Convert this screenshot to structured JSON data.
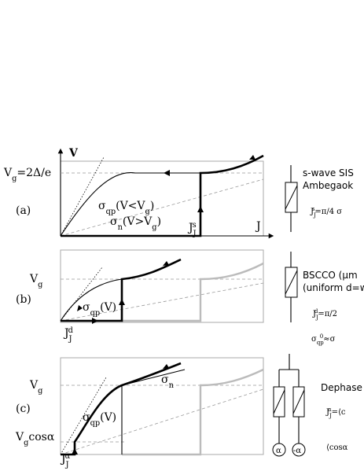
{
  "labels": {
    "a_v": [
      {
        "t": "V"
      }
    ],
    "a_vg": [
      {
        "t": "V"
      },
      {
        "sub": "g"
      },
      {
        "t": "=2Δ/e"
      }
    ],
    "a_label": [
      {
        "t": "(a)"
      }
    ],
    "a_sqp": [
      {
        "t": "σ"
      },
      {
        "sub": "qp"
      },
      {
        "t": "(V<V"
      },
      {
        "sub": "g"
      },
      {
        "t": ")"
      }
    ],
    "a_sn": [
      {
        "t": "σ"
      },
      {
        "sub": "n"
      },
      {
        "t": "(V>V"
      },
      {
        "sub": "g"
      },
      {
        "t": ")"
      }
    ],
    "a_jj": [
      {
        "t": "J"
      },
      {
        "sub": "J"
      },
      {
        "sup": "s"
      }
    ],
    "a_j": [
      {
        "t": "J"
      }
    ],
    "a_t1": [
      {
        "t": "s-wave SIS"
      }
    ],
    "a_t2": [
      {
        "t": "Ambegaok"
      }
    ],
    "a_f": [
      {
        "t": "J"
      },
      {
        "sub": "J"
      },
      {
        "sup": "s"
      },
      {
        "t": "=π/4 σ"
      }
    ],
    "b_vg": [
      {
        "t": "V"
      },
      {
        "sub": "g"
      }
    ],
    "b_label": [
      {
        "t": "(b)"
      }
    ],
    "b_sqp": [
      {
        "t": "σ"
      },
      {
        "sub": "qp"
      },
      {
        "t": "(V)"
      }
    ],
    "b_jj": [
      {
        "t": "J"
      },
      {
        "sub": "J"
      },
      {
        "sup": "d"
      }
    ],
    "b_t1": [
      {
        "t": "BSCCO (μm"
      }
    ],
    "b_t2": [
      {
        "t": "(uniform d=w"
      }
    ],
    "b_f1": [
      {
        "t": "J"
      },
      {
        "sub": "J"
      },
      {
        "sup": "d"
      },
      {
        "t": "=π/2"
      }
    ],
    "b_f2": [
      {
        "t": "σ"
      },
      {
        "sub": "qp"
      },
      {
        "sup": "0"
      },
      {
        "t": "≈σ"
      }
    ],
    "c_vg": [
      {
        "t": "V"
      },
      {
        "sub": "g"
      }
    ],
    "c_label": [
      {
        "t": "(c)"
      }
    ],
    "c_sn": [
      {
        "t": "σ"
      },
      {
        "sub": "n"
      }
    ],
    "c_sqp": [
      {
        "t": "σ"
      },
      {
        "sub": "qp"
      },
      {
        "t": "(V)"
      }
    ],
    "c_vgc": [
      {
        "t": "V"
      },
      {
        "sub": "g"
      },
      {
        "t": "cosα"
      }
    ],
    "c_jj": [
      {
        "t": "J"
      },
      {
        "sub": "J"
      },
      {
        "sup": "α"
      }
    ],
    "c_t1": [
      {
        "t": "Dephase"
      }
    ],
    "c_f1": [
      {
        "t": "J"
      },
      {
        "sub": "J"
      },
      {
        "sup": "α"
      },
      {
        "t": "=⟨c"
      }
    ],
    "c_f2": [
      {
        "t": "⟨cosα"
      }
    ],
    "c_alpha": [
      {
        "t": "α"
      }
    ],
    "c_malpha": [
      {
        "t": "-α"
      }
    ]
  }
}
